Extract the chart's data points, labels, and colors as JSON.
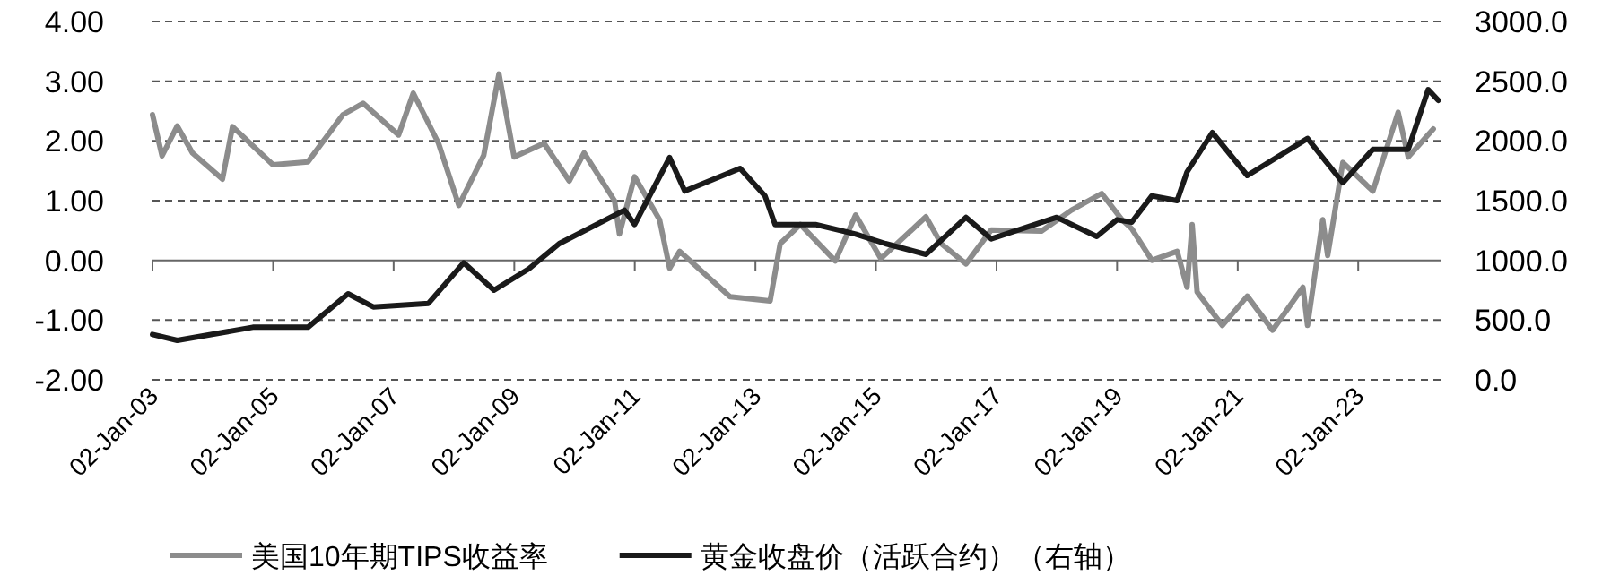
{
  "chart_data": {
    "type": "line",
    "legend": "bottom",
    "grid": "y",
    "line_style": "solid",
    "marker": "none",
    "xlim": [
      "2003-01-02",
      "2024-05-15"
    ],
    "xticks": [
      {
        "value": "2003-01-02",
        "label": "02-Jan-03"
      },
      {
        "value": "2005-01-02",
        "label": "02-Jan-05"
      },
      {
        "value": "2007-01-02",
        "label": "02-Jan-07"
      },
      {
        "value": "2009-01-02",
        "label": "02-Jan-09"
      },
      {
        "value": "2011-01-02",
        "label": "02-Jan-11"
      },
      {
        "value": "2013-01-02",
        "label": "02-Jan-13"
      },
      {
        "value": "2015-01-02",
        "label": "02-Jan-15"
      },
      {
        "value": "2017-01-02",
        "label": "02-Jan-17"
      },
      {
        "value": "2019-01-02",
        "label": "02-Jan-19"
      },
      {
        "value": "2021-01-02",
        "label": "02-Jan-21"
      },
      {
        "value": "2023-01-02",
        "label": "02-Jan-23"
      }
    ],
    "ylim": [
      -2,
      4
    ],
    "yticks": [
      {
        "value": -2,
        "label": "-2.00"
      },
      {
        "value": -1,
        "label": "-1.00"
      },
      {
        "value": 0,
        "label": "0.00"
      },
      {
        "value": 1,
        "label": "1.00"
      },
      {
        "value": 2,
        "label": "2.00"
      },
      {
        "value": 3,
        "label": "3.00"
      },
      {
        "value": 4,
        "label": "4.00"
      }
    ],
    "y2lim": [
      0,
      3000
    ],
    "y2ticks": [
      {
        "value": 0,
        "label": "0.0"
      },
      {
        "value": 500,
        "label": "500.0"
      },
      {
        "value": 1000,
        "label": "1000.0"
      },
      {
        "value": 1500,
        "label": "1500.0"
      },
      {
        "value": 2000,
        "label": "2000.0"
      },
      {
        "value": 2500,
        "label": "2500.0"
      },
      {
        "value": 3000,
        "label": "3000.0"
      }
    ],
    "series": [
      {
        "name": "美国10年期TIPS收益率",
        "color": "#8c8c8c",
        "x": [
          "2003-01-02",
          "2003-03",
          "2003-06",
          "2003-09",
          "2004-03",
          "2004-05",
          "2005-01",
          "2005-08",
          "2006-03",
          "2006-07",
          "2007-02",
          "2007-05",
          "2007-10",
          "2008-02",
          "2008-07",
          "2008-10",
          "2009-01",
          "2009-07",
          "2009-12",
          "2010-03",
          "2010-09",
          "2010-10",
          "2011-01",
          "2011-06",
          "2011-08",
          "2011-10",
          "2012-08",
          "2013-04",
          "2013-06",
          "2013-10",
          "2014-05",
          "2014-09",
          "2015-02",
          "2015-11",
          "2016-02",
          "2016-07",
          "2016-12",
          "2017-10",
          "2018-04",
          "2018-10",
          "2019-02",
          "2019-04",
          "2019-08",
          "2020-01",
          "2020-03",
          "2020-04",
          "2020-05",
          "2020-10",
          "2021-03",
          "2021-08",
          "2022-02",
          "2022-03",
          "2022-06",
          "2022-07",
          "2022-10",
          "2023-04",
          "2023-09",
          "2023-11",
          "2024-04"
        ],
        "values": [
          2.44,
          1.75,
          2.25,
          1.8,
          1.36,
          2.24,
          1.6,
          1.65,
          2.44,
          2.63,
          2.1,
          2.8,
          1.96,
          0.92,
          1.76,
          3.12,
          1.73,
          1.96,
          1.33,
          1.8,
          1.0,
          0.44,
          1.4,
          0.68,
          -0.13,
          0.15,
          -0.61,
          -0.68,
          0.28,
          0.6,
          -0.01,
          0.76,
          0.03,
          0.73,
          0.28,
          -0.06,
          0.51,
          0.49,
          0.84,
          1.12,
          0.68,
          0.53,
          0.0,
          0.15,
          -0.45,
          0.6,
          -0.53,
          -1.09,
          -0.6,
          -1.17,
          -0.45,
          -1.09,
          0.68,
          0.08,
          1.64,
          1.16,
          2.48,
          1.73,
          2.2
        ]
      },
      {
        "name": "黄金收盘价（活跃合约）（右轴）",
        "color": "#1a1a1a",
        "axis": "y2",
        "x": [
          "2003-01-02",
          "2003-06",
          "2004-09",
          "2005-08",
          "2006-04",
          "2006-09",
          "2007-08",
          "2008-03",
          "2008-09",
          "2009-04",
          "2009-10",
          "2010-11",
          "2011-01",
          "2011-08",
          "2011-11",
          "2012-10",
          "2013-03",
          "2013-05",
          "2014-01",
          "2014-09",
          "2015-03",
          "2015-11",
          "2016-07",
          "2016-12",
          "2018-01",
          "2018-09",
          "2019-01",
          "2019-04",
          "2019-08",
          "2020-01",
          "2020-03",
          "2020-08",
          "2021-03",
          "2022-03",
          "2022-10",
          "2023-04",
          "2023-11",
          "2024-03",
          "2024-05"
        ],
        "values": [
          380,
          330,
          440,
          440,
          720,
          610,
          640,
          980,
          750,
          930,
          1140,
          1420,
          1300,
          1860,
          1580,
          1770,
          1540,
          1300,
          1300,
          1220,
          1140,
          1050,
          1360,
          1180,
          1360,
          1200,
          1340,
          1320,
          1540,
          1500,
          1740,
          2070,
          1710,
          2020,
          1650,
          1930,
          1930,
          2430,
          2340
        ]
      }
    ]
  }
}
